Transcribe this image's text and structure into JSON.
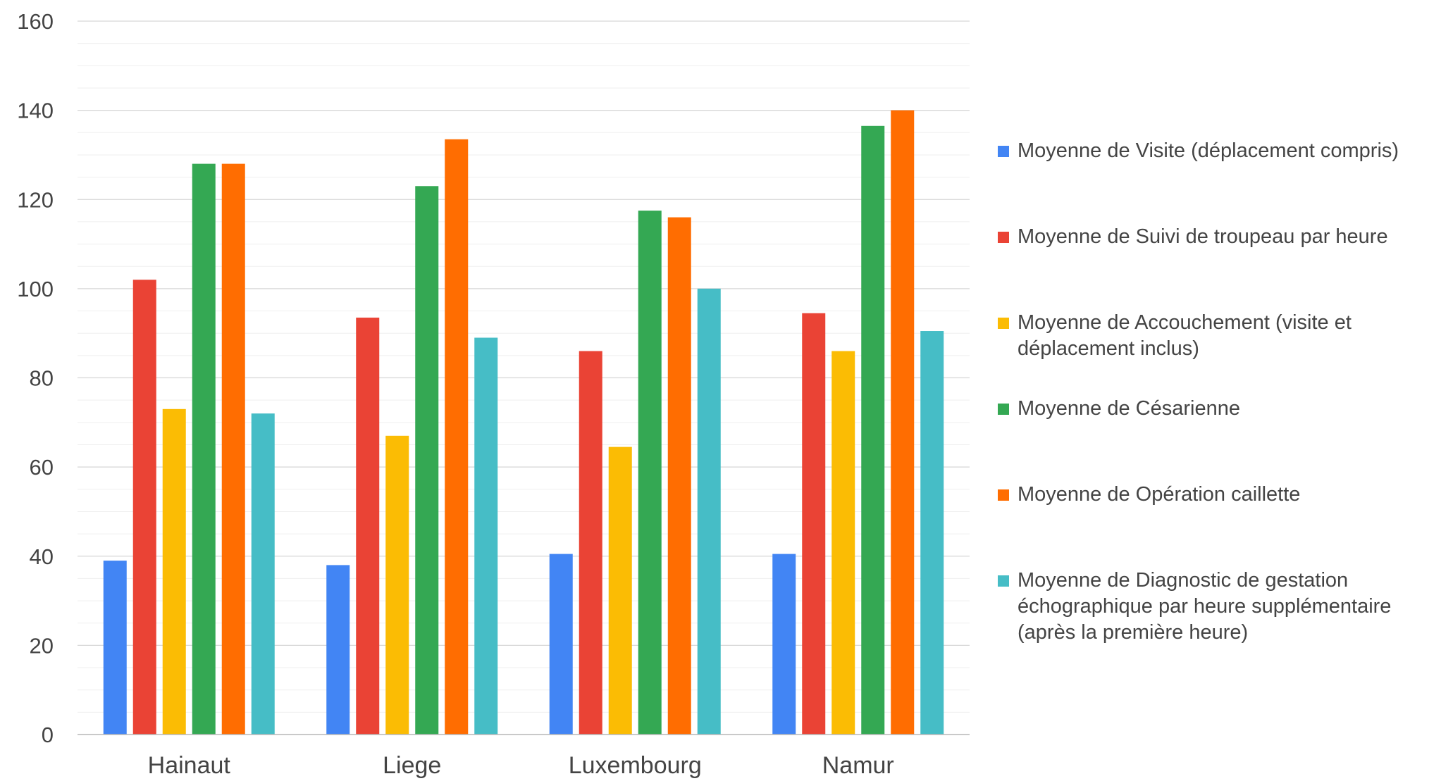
{
  "chart_data": {
    "type": "bar",
    "categories": [
      "Hainaut",
      "Liege",
      "Luxembourg",
      "Namur"
    ],
    "ylim": [
      0,
      160
    ],
    "yticks": [
      0,
      20,
      40,
      60,
      80,
      100,
      120,
      140,
      160
    ],
    "grid": true,
    "legend_position": "right",
    "series": [
      {
        "name": "Moyenne de Visite (déplacement compris)",
        "color": "#4285F4",
        "values": [
          39,
          38,
          40.5,
          40.5
        ]
      },
      {
        "name": "Moyenne de Suivi de troupeau par heure",
        "color": "#EA4335",
        "values": [
          102,
          93.5,
          86,
          94.5
        ]
      },
      {
        "name": "Moyenne de Accouchement (visite et déplacement inclus)",
        "color": "#FBBC04",
        "values": [
          73,
          67,
          64.5,
          86
        ]
      },
      {
        "name": "Moyenne de Césarienne",
        "color": "#34A853",
        "values": [
          128,
          123,
          117.5,
          136.5
        ]
      },
      {
        "name": "Moyenne de Opération caillette",
        "color": "#FF6D01",
        "values": [
          128,
          133.5,
          116,
          140
        ]
      },
      {
        "name": "Moyenne de Diagnostic de gestation échographique par heure supplémentaire (après la première heure)",
        "color": "#46BDC6",
        "values": [
          72,
          89,
          100,
          90.5
        ]
      }
    ]
  }
}
